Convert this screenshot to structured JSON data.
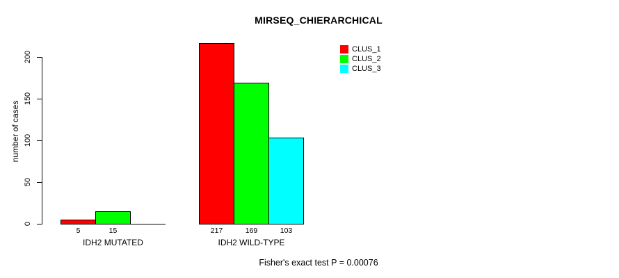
{
  "chart_data": {
    "type": "bar",
    "title": "MIRSEQ_CHIERARCHICAL",
    "xlabel": "",
    "ylabel": "number of cases",
    "yticks": [
      0,
      50,
      100,
      150,
      200
    ],
    "ylim": [
      0,
      200
    ],
    "grid": false,
    "legend_position": "top-right-inside",
    "legend": [
      {
        "label": "CLUS_1",
        "color": "#ff0000"
      },
      {
        "label": "CLUS_2",
        "color": "#00ff00"
      },
      {
        "label": "CLUS_3",
        "color": "#00ffff"
      }
    ],
    "groups": [
      {
        "label": "IDH2 MUTATED",
        "values": [
          5,
          15,
          0
        ],
        "value_labels": [
          "5",
          "15",
          ""
        ]
      },
      {
        "label": "IDH2 WILD-TYPE",
        "values": [
          217,
          169,
          103
        ],
        "value_labels": [
          "217",
          "169",
          "103"
        ]
      }
    ],
    "annotation": "Fisher's exact test P = 0.00076",
    "colors": {
      "bar_border": "#000000",
      "axis": "#000000",
      "text": "#000000",
      "background": "#ffffff"
    }
  }
}
